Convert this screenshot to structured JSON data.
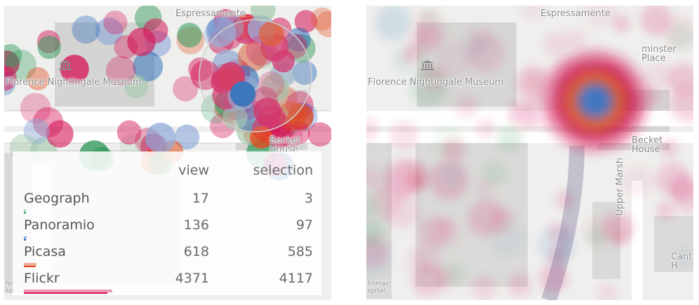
{
  "map": {
    "labels": {
      "espressamente": "Espressamente",
      "museum": "Florence Nightingale Museum",
      "becket": "Becket House",
      "westminster": "minster Place",
      "upper_marsh": "Upper Marsh",
      "thomas_hospital": "homas' spital",
      "cant": "Cant H"
    },
    "colors": {
      "flickr": "#d6175a",
      "picasa": "#e34a1c",
      "panoramio": "#1f64b8",
      "geograph": "#2f9a5a",
      "selection_circle": "#cccccc"
    }
  },
  "legend": {
    "header_view": "view",
    "header_selection": "selection",
    "max_value": 4371,
    "rows": [
      {
        "name": "Geograph",
        "view": "17",
        "selection": "3",
        "color": "#2f9a5a",
        "view_value": 17,
        "selection_value": 3
      },
      {
        "name": "Panoramio",
        "view": "136",
        "selection": "97",
        "color": "#1f64b8",
        "view_value": 136,
        "selection_value": 97
      },
      {
        "name": "Picasa",
        "view": "618",
        "selection": "585",
        "color": "#e34a1c",
        "view_value": 618,
        "selection_value": 585
      },
      {
        "name": "Flickr",
        "view": "4371",
        "selection": "4117",
        "color": "#d6175a",
        "view_value": 4371,
        "selection_value": 4117
      }
    ]
  }
}
